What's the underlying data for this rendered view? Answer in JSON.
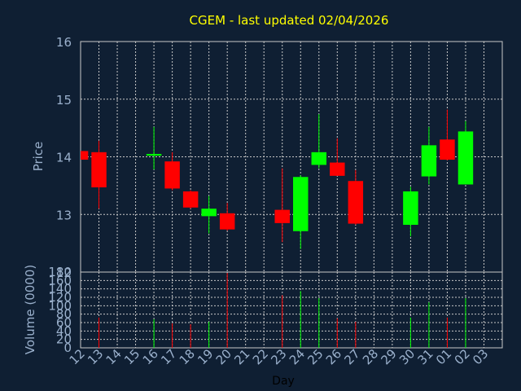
{
  "chart_data": {
    "type": "candlestick",
    "title": "CGEM - last updated 02/04/2026",
    "xlabel": "Day",
    "price_panel": {
      "ylabel": "Price",
      "ylim": [
        12,
        16
      ],
      "yticks": [
        "12",
        "13",
        "14",
        "15",
        "16"
      ]
    },
    "volume_panel": {
      "ylabel": "Volume (0000)",
      "ylim": [
        0,
        180
      ],
      "yticks": [
        "0",
        "20",
        "40",
        "60",
        "80",
        "100",
        "120",
        "140",
        "160",
        "180"
      ]
    },
    "x_ticks": [
      "12",
      "13",
      "14",
      "15",
      "16",
      "17",
      "18",
      "19",
      "20",
      "21",
      "22",
      "23",
      "24",
      "25",
      "26",
      "27",
      "28",
      "29",
      "30",
      "31",
      "01",
      "02",
      "03"
    ],
    "colors": {
      "up": "#00ff00",
      "down": "#ff0000",
      "background": "#0f1f33",
      "title": "#ffff00",
      "axis_text": "#9ab0cc",
      "grid": "#c8c8c8"
    },
    "candles": [
      {
        "day": "12",
        "open": 14.1,
        "high": 14.1,
        "low": 13.95,
        "close": 13.95,
        "volume": 0
      },
      {
        "day": "13",
        "open": 14.08,
        "high": 14.28,
        "low": 13.1,
        "close": 13.47,
        "volume": 72
      },
      {
        "day": "16",
        "open": 14.02,
        "high": 14.52,
        "low": 13.78,
        "close": 14.05,
        "volume": 68
      },
      {
        "day": "17",
        "open": 13.92,
        "high": 14.08,
        "low": 13.42,
        "close": 13.45,
        "volume": 58
      },
      {
        "day": "18",
        "open": 13.4,
        "high": 13.42,
        "low": 13.1,
        "close": 13.12,
        "volume": 56
      },
      {
        "day": "19",
        "open": 12.97,
        "high": 13.32,
        "low": 12.67,
        "close": 13.1,
        "volume": 62
      },
      {
        "day": "20",
        "open": 13.02,
        "high": 13.2,
        "low": 12.72,
        "close": 12.74,
        "volume": 178
      },
      {
        "day": "23",
        "open": 13.08,
        "high": 13.8,
        "low": 12.52,
        "close": 12.85,
        "volume": 125
      },
      {
        "day": "24",
        "open": 12.71,
        "high": 13.68,
        "low": 12.4,
        "close": 13.65,
        "volume": 135
      },
      {
        "day": "25",
        "open": 13.86,
        "high": 14.74,
        "low": 13.8,
        "close": 14.08,
        "volume": 118
      },
      {
        "day": "26",
        "open": 13.9,
        "high": 14.32,
        "low": 13.67,
        "close": 13.67,
        "volume": 70
      },
      {
        "day": "27",
        "open": 13.58,
        "high": 13.77,
        "low": 12.82,
        "close": 12.84,
        "volume": 62
      },
      {
        "day": "30",
        "open": 12.82,
        "high": 13.48,
        "low": 12.62,
        "close": 13.4,
        "volume": 72
      },
      {
        "day": "31",
        "open": 13.66,
        "high": 14.52,
        "low": 13.52,
        "close": 14.2,
        "volume": 108
      },
      {
        "day": "01",
        "open": 14.3,
        "high": 14.82,
        "low": 13.94,
        "close": 13.95,
        "volume": 72
      },
      {
        "day": "02",
        "open": 13.52,
        "high": 14.62,
        "low": 13.52,
        "close": 14.44,
        "volume": 118
      }
    ]
  }
}
